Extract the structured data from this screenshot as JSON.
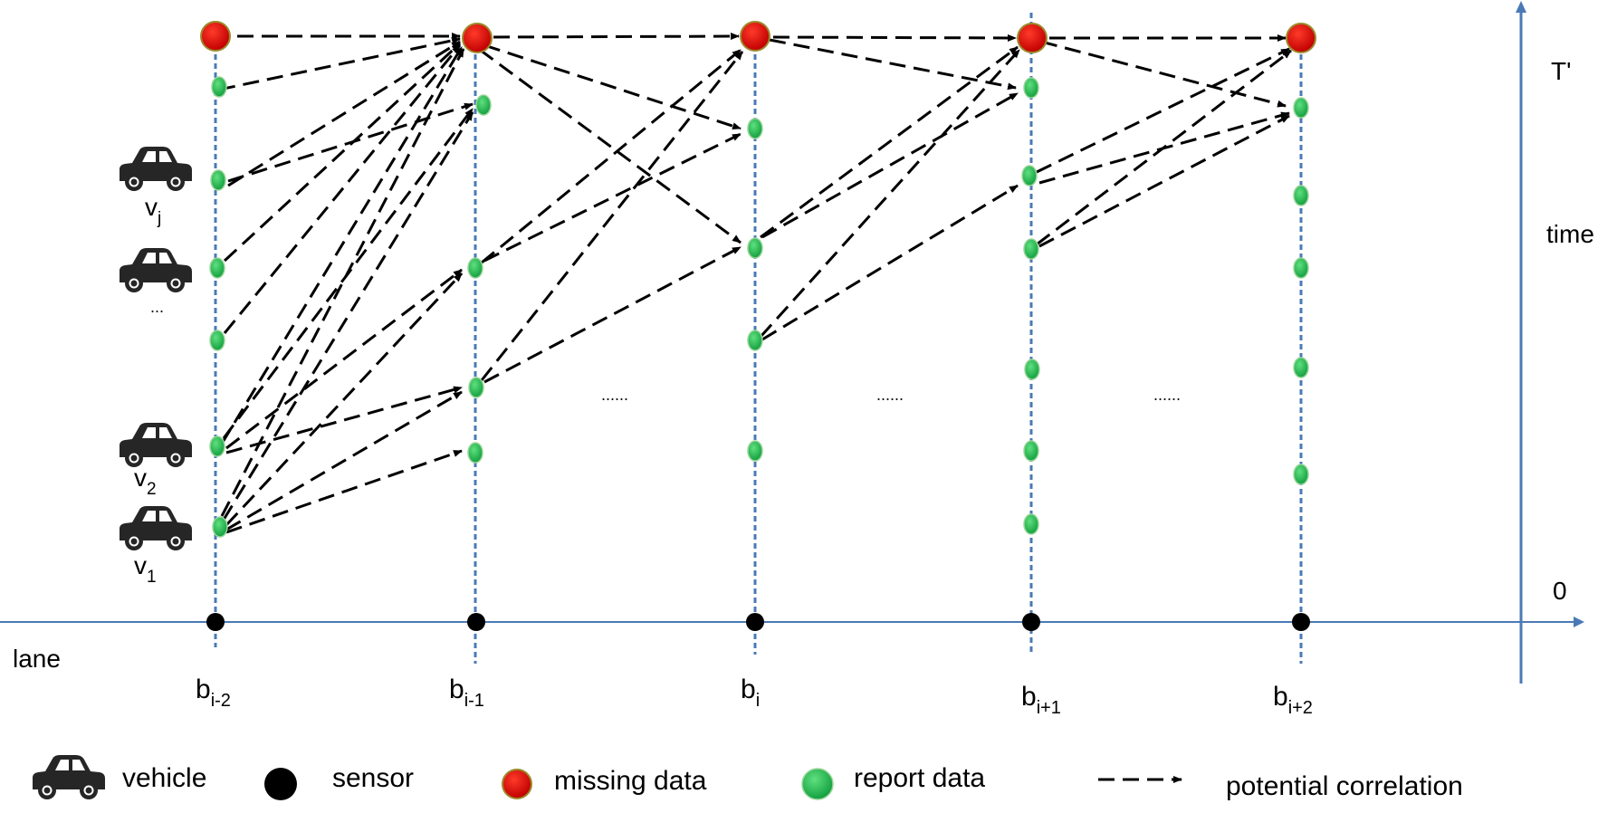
{
  "colors": {
    "axis": "#4a7ab5",
    "column_line": "#4a7ab5",
    "missing_fill": "#d20000",
    "missing_stroke": "#9c8a2c",
    "report_fill": "#22b455",
    "report_stroke": "#9ad59a",
    "sensor": "#000000",
    "arrow": "#000000"
  },
  "axes": {
    "lane_label": "lane",
    "time_label": "time",
    "top_label": "T'",
    "origin_label": "0"
  },
  "columns": [
    {
      "base": "b",
      "sub": "i-2"
    },
    {
      "base": "b",
      "sub": "i-1"
    },
    {
      "base": "b",
      "sub": "i"
    },
    {
      "base": "b",
      "sub": "i+1"
    },
    {
      "base": "b",
      "sub": "i+2"
    }
  ],
  "vehicles": [
    {
      "base": "v",
      "sub": "j"
    },
    {
      "base": "",
      "sub": "",
      "text": "..."
    },
    {
      "base": "v",
      "sub": "2"
    },
    {
      "base": "v",
      "sub": "1"
    }
  ],
  "gap_ellipses": [
    "......",
    "......",
    "......"
  ],
  "legend": {
    "vehicle": "vehicle",
    "sensor": "sensor",
    "missing": "missing data",
    "report": "report data",
    "correlation": "potential correlation"
  }
}
